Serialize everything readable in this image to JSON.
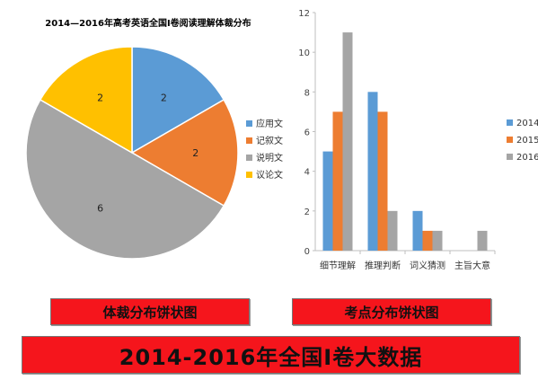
{
  "chart_data": [
    {
      "type": "pie",
      "title": "2014—2016年高考英语全国I卷阅读理解体裁分布",
      "slices": [
        {
          "label": "应用文",
          "value": 2,
          "color": "#5b9bd5"
        },
        {
          "label": "记叙文",
          "value": 2,
          "color": "#ed7d31"
        },
        {
          "label": "说明文",
          "value": 6,
          "color": "#a5a5a5"
        },
        {
          "label": "议论文",
          "value": 2,
          "color": "#ffc000"
        }
      ],
      "legend_position": "right"
    },
    {
      "type": "bar",
      "title": "",
      "categories": [
        "细节理解",
        "推理判断",
        "词义猜测",
        "主旨大意"
      ],
      "series": [
        {
          "name": "2014",
          "values": [
            5,
            8,
            2,
            0
          ],
          "color": "#5b9bd5"
        },
        {
          "name": "2015",
          "values": [
            7,
            7,
            1,
            0
          ],
          "color": "#ed7d31"
        },
        {
          "name": "2016",
          "values": [
            11,
            2,
            1,
            1
          ],
          "color": "#a5a5a5"
        }
      ],
      "ylim": [
        0,
        12
      ],
      "yticks": [
        0,
        2,
        4,
        6,
        8,
        10,
        12
      ],
      "grid": false,
      "legend_position": "right"
    }
  ],
  "banners": {
    "left": "体裁分布饼状图",
    "right": "考点分布饼状图",
    "bottom": "2014-2016年全国I卷大数据"
  }
}
